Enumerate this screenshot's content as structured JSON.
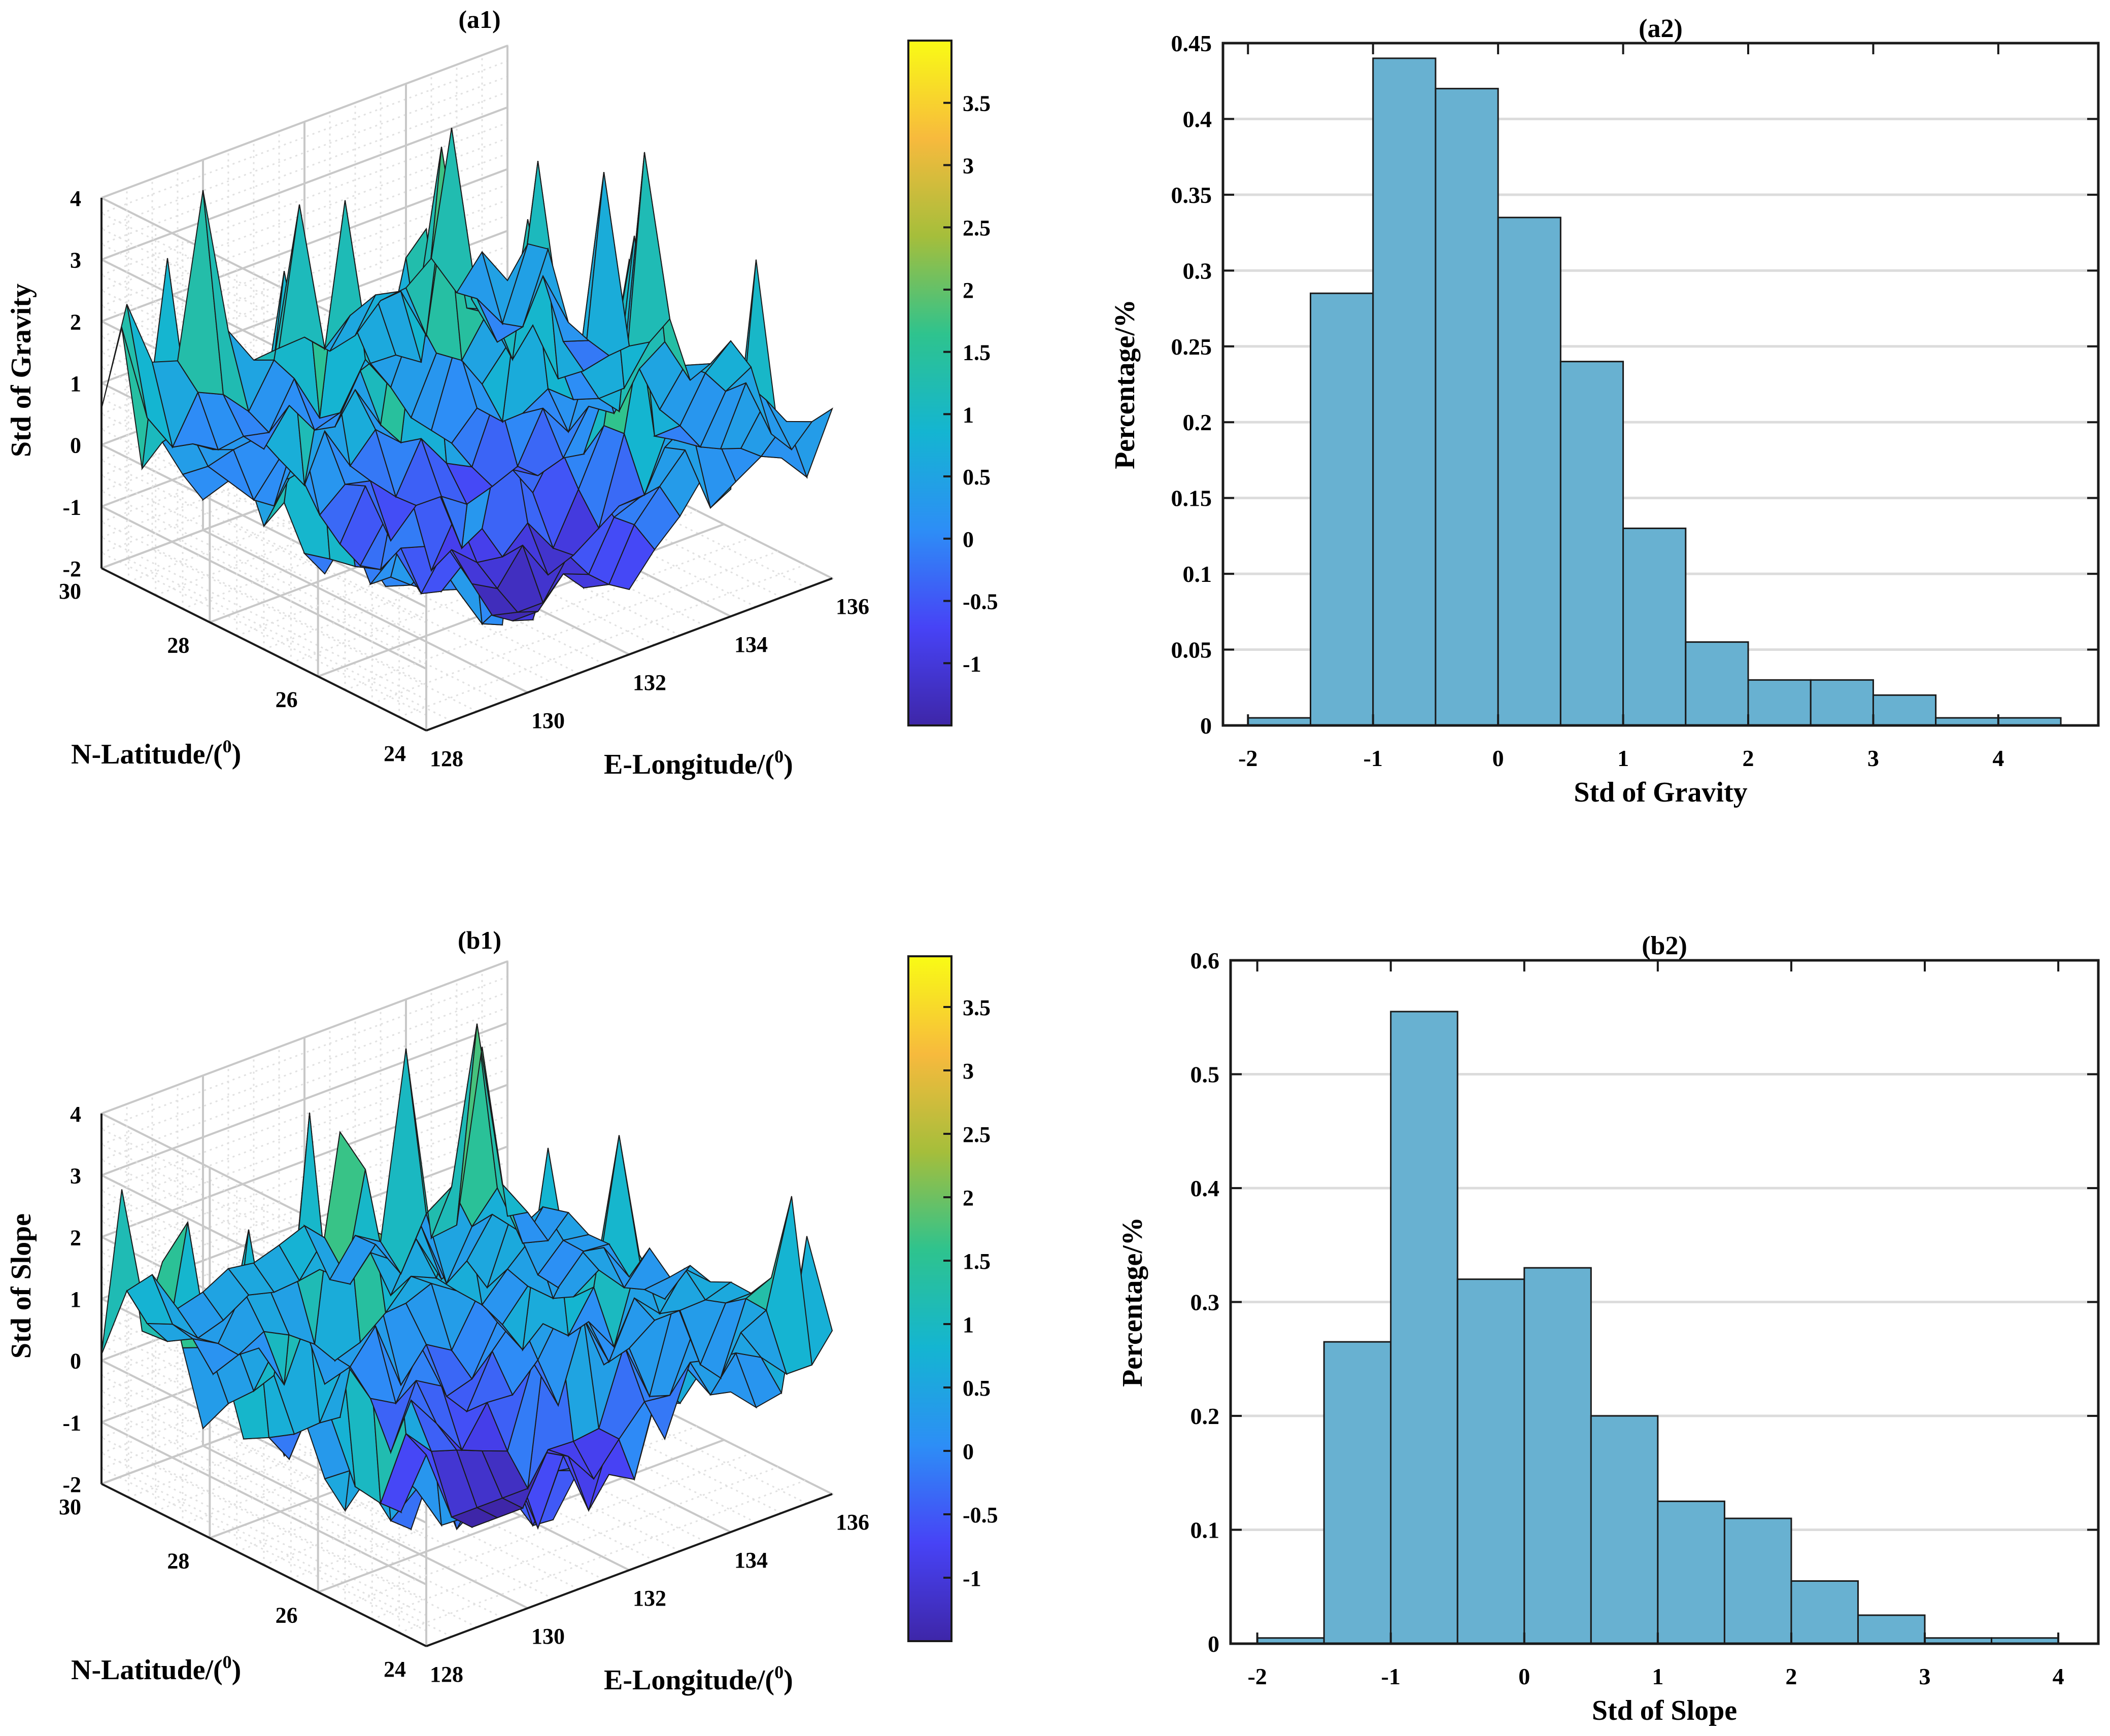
{
  "colors": {
    "bar_fill": "#68b1d1",
    "bar_stroke": "#1a1a1a",
    "axis": "#1a1a1a",
    "grid": "#dcdcdc",
    "parula": [
      "#3e26a8",
      "#4743f6",
      "#2d8ef6",
      "#14b5d1",
      "#2ec38e",
      "#a5be3b",
      "#f7ba3d",
      "#f9fb15"
    ]
  },
  "chart_data": [
    {
      "id": "a1",
      "type": "surface",
      "title": "(a1)",
      "xlabel": "E-Longitude/(",
      "ylabel": "N-Latitude/(",
      "zlabel": "Std of Gravity",
      "unit_superscript": "0",
      "unit_close": ")",
      "xlim": [
        128,
        136
      ],
      "ylim": [
        24,
        30
      ],
      "zlim": [
        -2,
        4
      ],
      "xticks": [
        "128",
        "130",
        "132",
        "134",
        "136"
      ],
      "yticks": [
        "24",
        "26",
        "28",
        "30"
      ],
      "zticks": [
        "-2",
        "-1",
        "0",
        "1",
        "2",
        "3",
        "4"
      ],
      "colorbar": {
        "min": -1.5,
        "max": 4.0,
        "ticks": [
          "-1",
          "-0.5",
          "0",
          "0.5",
          "1",
          "1.5",
          "2",
          "2.5",
          "3",
          "3.5"
        ]
      }
    },
    {
      "id": "a2",
      "type": "bar",
      "title": "(a2)",
      "xlabel": "Std of Gravity",
      "ylabel": "Percentage/%",
      "xlim": [
        -2.2,
        4.8
      ],
      "ylim": [
        0,
        0.45
      ],
      "xticks": [
        "-2",
        "-1",
        "0",
        "1",
        "2",
        "3",
        "4"
      ],
      "yticks": [
        "0",
        "0.05",
        "0.1",
        "0.15",
        "0.2",
        "0.25",
        "0.3",
        "0.35",
        "0.4",
        "0.45"
      ],
      "bin_edges": [
        -2.0,
        -1.5,
        -1.0,
        -0.5,
        0.0,
        0.5,
        1.0,
        1.5,
        2.0,
        2.5,
        3.0,
        3.5,
        4.0,
        4.5
      ],
      "values": [
        0.005,
        0.285,
        0.44,
        0.42,
        0.335,
        0.24,
        0.13,
        0.055,
        0.03,
        0.03,
        0.02,
        0.005,
        0.005
      ]
    },
    {
      "id": "b1",
      "type": "surface",
      "title": "(b1)",
      "xlabel": "E-Longitude/(",
      "ylabel": "N-Latitude/(",
      "zlabel": "Std of Slope",
      "unit_superscript": "0",
      "unit_close": ")",
      "xlim": [
        128,
        136
      ],
      "ylim": [
        24,
        30
      ],
      "zlim": [
        -2,
        4
      ],
      "xticks": [
        "128",
        "130",
        "132",
        "134",
        "136"
      ],
      "yticks": [
        "24",
        "26",
        "28",
        "30"
      ],
      "zticks": [
        "-2",
        "-1",
        "0",
        "1",
        "2",
        "3",
        "4"
      ],
      "colorbar": {
        "min": -1.5,
        "max": 3.9,
        "ticks": [
          "-1",
          "-0.5",
          "0",
          "0.5",
          "1",
          "1.5",
          "2",
          "2.5",
          "3",
          "3.5"
        ]
      }
    },
    {
      "id": "b2",
      "type": "bar",
      "title": "(b2)",
      "xlabel": "Std of Slope",
      "ylabel": "Percentage/%",
      "xlim": [
        -2.2,
        4.3
      ],
      "ylim": [
        0,
        0.6
      ],
      "xticks": [
        "-2",
        "-1",
        "0",
        "1",
        "2",
        "3",
        "4"
      ],
      "yticks": [
        "0",
        "0.1",
        "0.2",
        "0.3",
        "0.4",
        "0.5",
        "0.6"
      ],
      "bin_edges": [
        -2.0,
        -1.5,
        -1.0,
        -0.5,
        0.0,
        0.5,
        1.0,
        1.5,
        2.0,
        2.5,
        3.0,
        3.5,
        4.0
      ],
      "values": [
        0.005,
        0.265,
        0.555,
        0.32,
        0.33,
        0.2,
        0.125,
        0.11,
        0.055,
        0.025,
        0.005,
        0.005
      ]
    }
  ]
}
